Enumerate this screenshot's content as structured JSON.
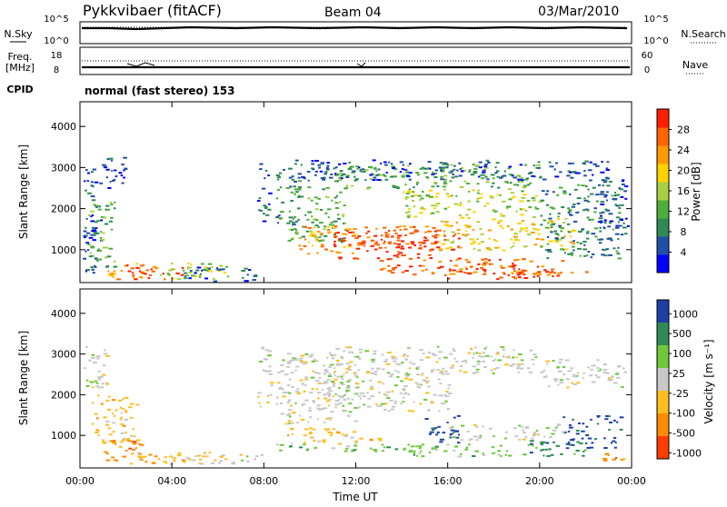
{
  "header": {
    "station": "Pykkvibaer (fitACF)",
    "beam": "Beam 04",
    "date": "03/Mar/2010"
  },
  "side_labels": {
    "nsky": "N.Sky",
    "nsearch": "N.Search",
    "freq": "Freq.",
    "freq_unit": "[MHz]",
    "nave": "Nave",
    "cpid": "CPID"
  },
  "small_axes": {
    "nsky_ticks": [
      "10^5",
      "10^0"
    ],
    "nsearch_ticks": [
      "10^5",
      "10^0"
    ],
    "freq_ticks": [
      "18",
      "8"
    ],
    "nave_ticks": [
      "60",
      "0"
    ]
  },
  "cpid_text": "normal (fast stereo) 153",
  "colors": {
    "power_scale": [
      "#0000ff",
      "#1f4fa8",
      "#2f8a55",
      "#4fae3a",
      "#a8d040",
      "#ffd200",
      "#ff9a00",
      "#ff6400",
      "#ff1e00"
    ],
    "velocity_scale": [
      "#1f3fa8",
      "#2f8a55",
      "#6ec83a",
      "#c8c8c8",
      "#ffbe1e",
      "#ff8c00",
      "#ff3c00"
    ],
    "ground_scatter": "#c8c8c8"
  },
  "chart_data": [
    {
      "type": "heatmap",
      "panel": "power",
      "xlabel": "",
      "ylabel": "Slant Range [km]",
      "y_ticks": [
        "1000",
        "2000",
        "3000",
        "4000"
      ],
      "ylim": [
        200,
        4600
      ],
      "xlim": [
        0,
        24
      ],
      "colorbar_label": "Power [dB]",
      "colorbar_ticks": [
        "4",
        "8",
        "12",
        "16",
        "20",
        "24",
        "28"
      ]
    },
    {
      "type": "heatmap",
      "panel": "velocity",
      "xlabel": "Time UT",
      "ylabel": "Slant Range [km]",
      "x_ticks": [
        "00:00",
        "04:00",
        "08:00",
        "12:00",
        "16:00",
        "20:00",
        "00:00"
      ],
      "y_ticks": [
        "1000",
        "2000",
        "3000",
        "4000"
      ],
      "ylim": [
        200,
        4600
      ],
      "xlim": [
        0,
        24
      ],
      "colorbar_label": "Velocity [m s⁻¹]",
      "colorbar_ticks": [
        "1000",
        "500",
        "100",
        "25",
        "-25",
        "-100",
        "-500",
        "-1000"
      ]
    }
  ]
}
